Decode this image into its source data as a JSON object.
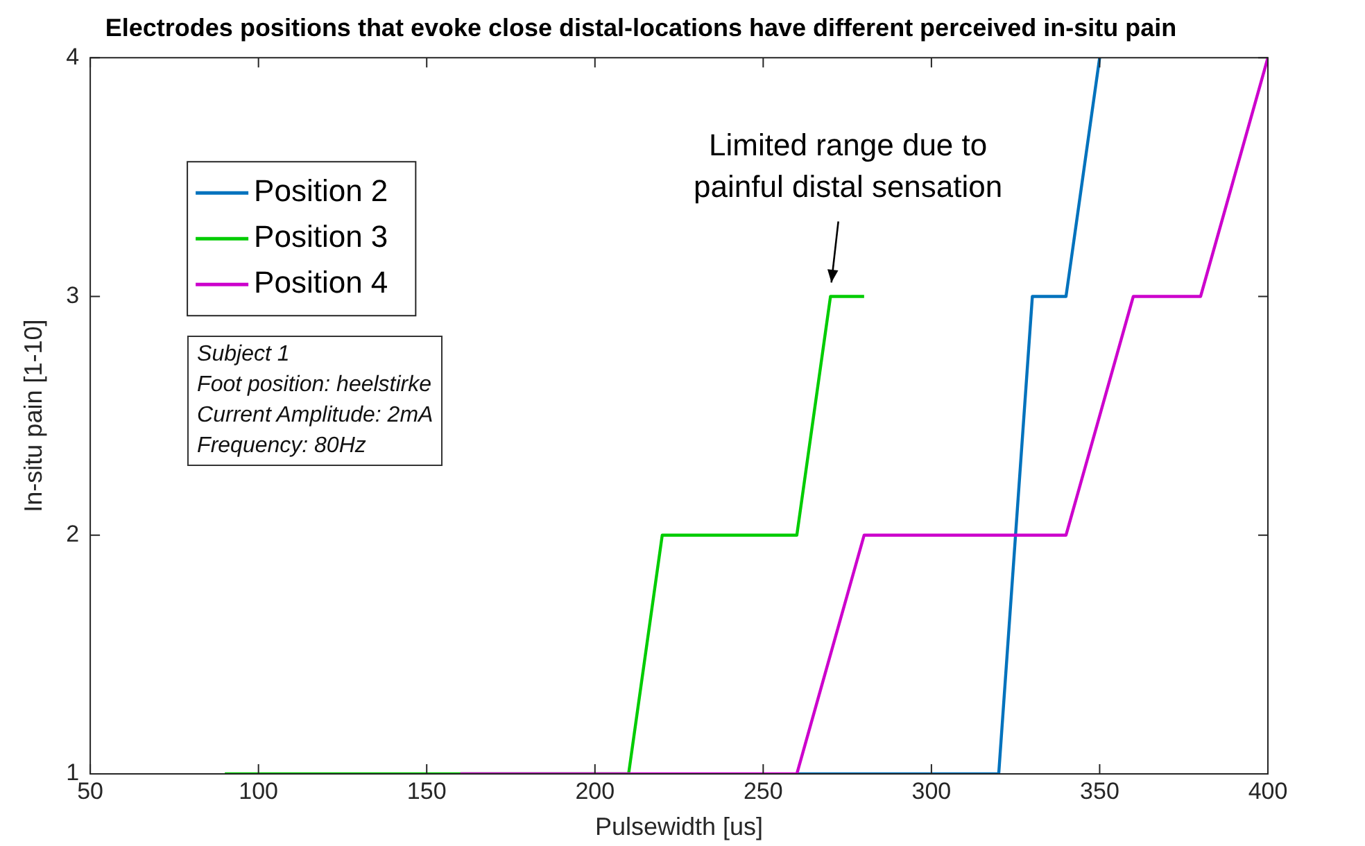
{
  "chart_data": {
    "type": "line",
    "title": "Electrodes positions that evoke close distal-locations have different perceived in-situ pain",
    "xlabel": "Pulsewidth [us]",
    "ylabel": "In-situ pain [1-10]",
    "xlim": [
      50,
      400
    ],
    "xticks": [
      50,
      100,
      150,
      200,
      250,
      300,
      350,
      400
    ],
    "ylim": [
      1,
      4
    ],
    "yticks": [
      1,
      2,
      3,
      4
    ],
    "series": [
      {
        "name": "Position 2",
        "color": "#0072bd",
        "x": [
          260,
          320,
          330,
          340,
          350
        ],
        "values": [
          1,
          1,
          3,
          3,
          4
        ]
      },
      {
        "name": "Position 3",
        "color": "#00cc00",
        "x": [
          90,
          210,
          220,
          260,
          270,
          280
        ],
        "values": [
          1,
          1,
          2,
          2,
          3,
          3
        ]
      },
      {
        "name": "Position 4",
        "color": "#cc00cc",
        "x": [
          160,
          260,
          280,
          340,
          360,
          380,
          400
        ],
        "values": [
          1,
          1,
          2,
          2,
          3,
          3,
          4
        ]
      }
    ],
    "legend": "top left",
    "grid": false,
    "marker": "none",
    "line_style": "solid",
    "annotations": [
      "Limited range due to painful distal sensation",
      "Subject 1",
      "Foot position: heelstirke",
      "Current Amplitude: 2mA",
      "Frequency: 80Hz"
    ]
  }
}
